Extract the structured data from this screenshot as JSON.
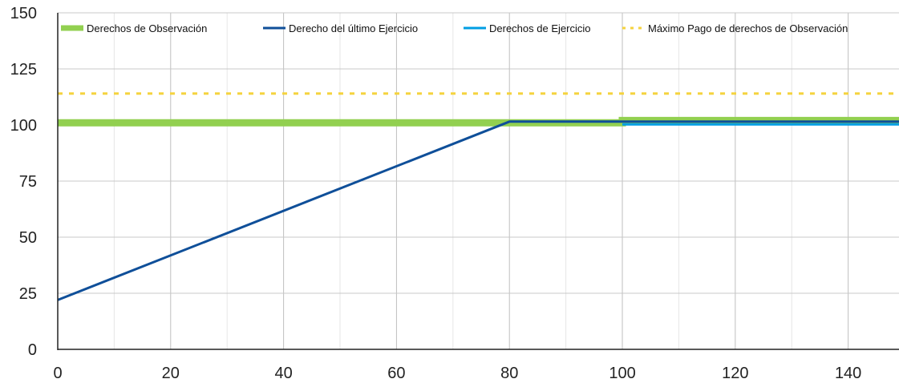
{
  "chart_data": {
    "type": "line",
    "title": "",
    "xlabel": "",
    "ylabel": "",
    "xlim": [
      0,
      149
    ],
    "ylim": [
      0,
      150
    ],
    "x_ticks": [
      0,
      20,
      40,
      60,
      80,
      100,
      120,
      140
    ],
    "y_ticks": [
      0,
      25,
      50,
      75,
      100,
      125,
      150
    ],
    "x_minor_step": 10,
    "grid": true,
    "legend_position": "top",
    "series": [
      {
        "name": "Derechos de Observación",
        "color": "#92d050",
        "style": "thick-solid",
        "points": [
          [
            0,
            101
          ],
          [
            100,
            101
          ],
          [
            100,
            102
          ],
          [
            149,
            102
          ]
        ]
      },
      {
        "name": "Derecho del último Ejercicio",
        "color": "#0f4f99",
        "style": "solid",
        "points": [
          [
            0,
            22
          ],
          [
            80,
            101.5
          ],
          [
            149,
            101.5
          ]
        ]
      },
      {
        "name": "Derechos de Ejercicio",
        "color": "#009ee3",
        "style": "solid",
        "points": [
          [
            100,
            100.3
          ],
          [
            149,
            100.3
          ]
        ]
      },
      {
        "name": "Máximo Pago de derechos de Observación",
        "color": "#f5d33f",
        "style": "dashed",
        "points": [
          [
            0,
            114
          ],
          [
            149,
            114
          ]
        ]
      }
    ]
  }
}
